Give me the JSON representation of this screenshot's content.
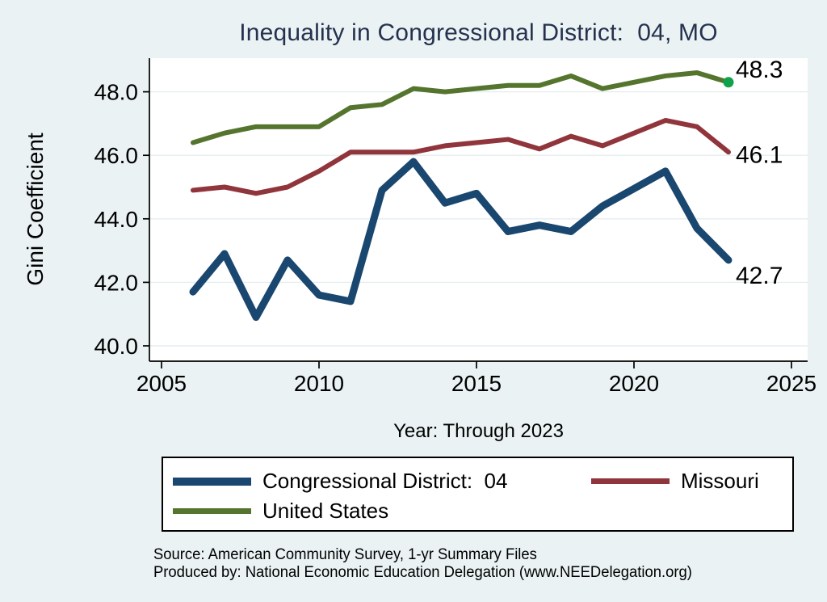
{
  "page": {
    "background": "#EAF2F3",
    "plot_background": "#FFFFFF"
  },
  "chart_data": {
    "type": "line",
    "title": "Inequality in Congressional District:  04, MO",
    "title_color": "#25324F",
    "xlabel": "Year: Through 2023",
    "ylabel": "Gini Coefficient",
    "x": [
      2006,
      2007,
      2008,
      2009,
      2010,
      2011,
      2012,
      2013,
      2014,
      2015,
      2016,
      2017,
      2018,
      2019,
      2021,
      2022,
      2023
    ],
    "series": [
      {
        "name": "Congressional District:  04",
        "color": "#1A476F",
        "line_width": 9,
        "values": [
          41.7,
          42.9,
          40.9,
          42.7,
          41.6,
          41.4,
          44.9,
          45.8,
          44.5,
          44.8,
          43.6,
          43.8,
          43.6,
          44.4,
          45.5,
          43.7,
          42.7
        ],
        "end_label": "42.7"
      },
      {
        "name": "Missouri",
        "color": "#90353B",
        "line_width": 6,
        "values": [
          44.9,
          45.0,
          44.8,
          45.0,
          45.5,
          46.1,
          46.1,
          46.1,
          46.3,
          46.4,
          46.5,
          46.2,
          46.6,
          46.3,
          47.1,
          46.9,
          46.1
        ],
        "end_label": "46.1"
      },
      {
        "name": "United States",
        "color": "#55752F",
        "line_width": 6,
        "values": [
          46.4,
          46.7,
          46.9,
          46.9,
          46.9,
          47.5,
          47.6,
          48.1,
          48.0,
          48.1,
          48.2,
          48.2,
          48.5,
          48.1,
          48.5,
          48.6,
          48.3
        ],
        "end_label": "48.3",
        "end_marker": true,
        "end_marker_color": "#0FA14B"
      }
    ],
    "xticks": [
      2005,
      2010,
      2015,
      2020,
      2025
    ],
    "yticks": [
      40.0,
      42.0,
      44.0,
      46.0,
      48.0
    ],
    "xlim": [
      2004.6,
      2025.5
    ],
    "ylim": [
      39.5,
      49.05
    ],
    "grid": true,
    "gridline_color": "#E4EEF0",
    "axis_color": "#000000",
    "legend_position": "bottom",
    "end_label_dy": [
      29,
      13,
      -6
    ]
  },
  "footer": {
    "source": "Source: American Community Survey, 1-yr Summary Files",
    "produced_by": "Produced by: National Economic Education Delegation (www.NEEDelegation.org)"
  }
}
